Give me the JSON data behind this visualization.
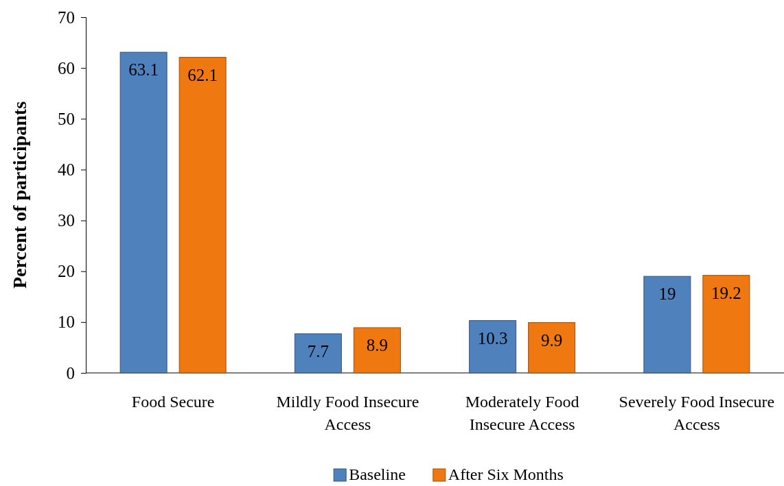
{
  "chart_data": {
    "type": "bar",
    "ylabel": "Percent of participants",
    "categories": [
      "Food Secure",
      "Mildly Food Insecure Access",
      "Moderately Food Insecure Access",
      "Severely Food Insecure Access"
    ],
    "series": [
      {
        "name": "Baseline",
        "color": "#4f81bd",
        "values": [
          63.1,
          7.7,
          10.3,
          19
        ]
      },
      {
        "name": "After Six Months",
        "color": "#f07810",
        "values": [
          62.1,
          8.9,
          9.9,
          19.2
        ]
      }
    ],
    "ylim": [
      0,
      70
    ],
    "yticks": [
      0,
      10,
      20,
      30,
      40,
      50,
      60,
      70
    ],
    "grid": false,
    "legend": "bottom",
    "data_labels": true
  }
}
